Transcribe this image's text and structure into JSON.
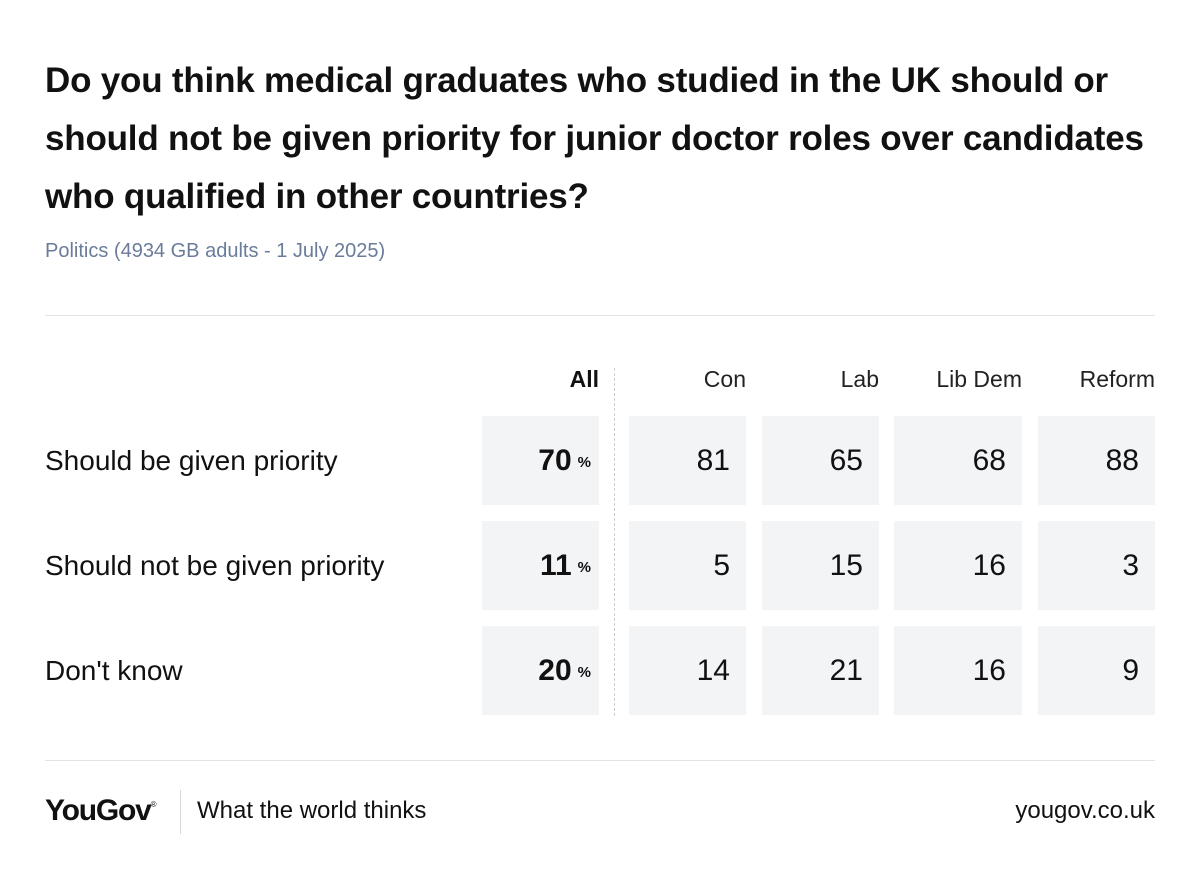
{
  "header": {
    "title": "Do you think medical graduates who studied in the UK should or should not be given priority for junior doctor roles over candidates who qualified in other countries?",
    "subtitle": "Politics (4934 GB adults - 1 July 2025)"
  },
  "chart_data": {
    "type": "table",
    "columns": [
      "All",
      "Con",
      "Lab",
      "Lib Dem",
      "Reform"
    ],
    "all_unit": "%",
    "rows": [
      {
        "label": "Should be given priority",
        "all": 70,
        "values": [
          81,
          65,
          68,
          88
        ]
      },
      {
        "label": "Should not be given priority",
        "all": 11,
        "values": [
          5,
          15,
          16,
          3
        ]
      },
      {
        "label": "Don't know",
        "all": 20,
        "values": [
          14,
          21,
          16,
          9
        ]
      }
    ]
  },
  "footer": {
    "logo": "YouGov",
    "logo_mark": "®",
    "tagline": "What the world thinks",
    "url": "yougov.co.uk"
  },
  "colors": {
    "cell_background": "#f3f4f6",
    "subtitle": "#6a7c9a",
    "divider": "#e3e3e3"
  }
}
